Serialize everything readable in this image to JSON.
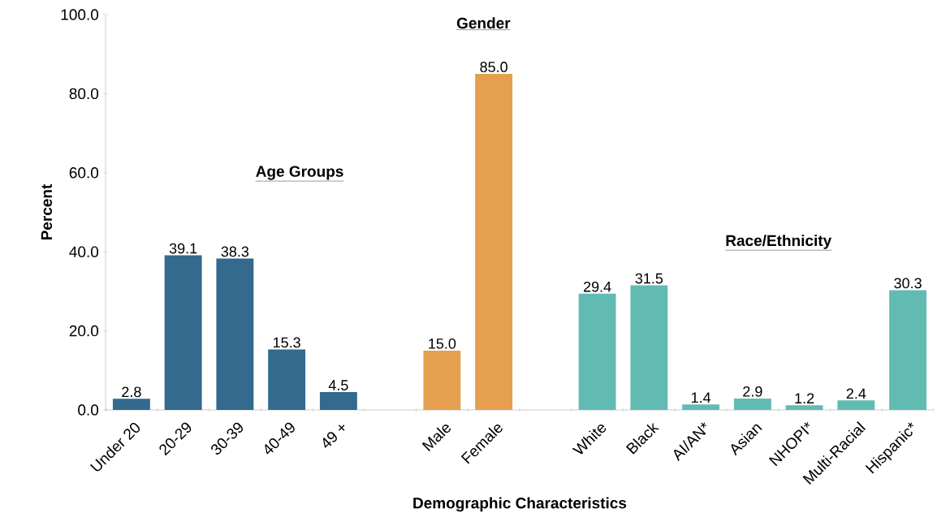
{
  "chart_data": {
    "type": "bar",
    "xlabel": "Demographic Characteristics",
    "ylabel": "Percent",
    "categories": [
      "Under 20",
      "20-29",
      "30-39",
      "40-49",
      "49 +",
      null,
      "Male",
      "Female",
      null,
      "White",
      "Black",
      "AI/AN*",
      "Asian",
      "NHOPI*",
      "Multi-Racial",
      "Hispanic*"
    ],
    "values": [
      2.8,
      39.1,
      38.3,
      15.3,
      4.5,
      null,
      15.0,
      85.0,
      null,
      29.4,
      31.5,
      1.4,
      2.9,
      1.2,
      2.4,
      30.3
    ],
    "value_labels": [
      "2.8",
      "39.1",
      "38.3",
      "15.3",
      "4.5",
      null,
      "15.0",
      "85.0",
      null,
      "29.4",
      "31.5",
      "1.4",
      "2.9",
      "1.2",
      "2.4",
      "30.3"
    ],
    "colors": [
      "#336a8e",
      "#336a8e",
      "#336a8e",
      "#336a8e",
      "#336a8e",
      null,
      "#e4a04e",
      "#e4a04e",
      null,
      "#62bbb3",
      "#62bbb3",
      "#62bbb3",
      "#62bbb3",
      "#62bbb3",
      "#62bbb3",
      "#62bbb3"
    ],
    "annotations": [
      "Age Groups",
      "Gender",
      "Race/Ethnicity"
    ],
    "ylim": [
      0,
      100
    ],
    "yticks": [
      {
        "value": 0,
        "label": "0.0"
      },
      {
        "value": 20,
        "label": "20.0"
      },
      {
        "value": 40,
        "label": "40.0"
      },
      {
        "value": 60,
        "label": "60.0"
      },
      {
        "value": 80,
        "label": "80.0"
      },
      {
        "value": 100,
        "label": "100.0"
      }
    ],
    "grid": false
  }
}
